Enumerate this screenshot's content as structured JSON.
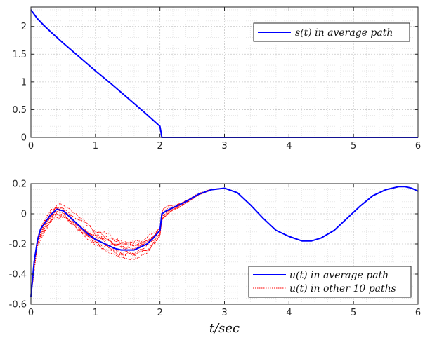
{
  "chart_data": [
    {
      "type": "line",
      "xlim": [
        0,
        6
      ],
      "ylim": [
        0,
        2.35
      ],
      "xticks": [
        "0",
        "1",
        "2",
        "3",
        "4",
        "5",
        "6"
      ],
      "yticks": [
        "0",
        "0.5",
        "1",
        "1.5",
        "2"
      ],
      "grid": true,
      "legend_position": "top-right",
      "series": [
        {
          "name": "s(t) in average path",
          "color": "#0000ff",
          "x": [
            0,
            0.05,
            0.1,
            0.2,
            0.3,
            0.5,
            0.75,
            1.0,
            1.25,
            1.5,
            1.75,
            2.0,
            2.03,
            2.5,
            3,
            3.5,
            4,
            4.5,
            5,
            5.5,
            6
          ],
          "y": [
            2.3,
            2.22,
            2.14,
            2.02,
            1.91,
            1.7,
            1.45,
            1.2,
            0.96,
            0.71,
            0.46,
            0.2,
            0.0,
            0.0,
            0.0,
            0.0,
            0.0,
            0.0,
            0.0,
            0.0,
            0.0
          ]
        }
      ]
    },
    {
      "type": "line",
      "xlim": [
        0,
        6
      ],
      "ylim": [
        -0.6,
        0.2
      ],
      "xticks": [
        "0",
        "1",
        "2",
        "3",
        "4",
        "5",
        "6"
      ],
      "yticks": [
        "-0.6",
        "-0.4",
        "-0.2",
        "0",
        "0.2"
      ],
      "grid": true,
      "xlabel": "t/sec",
      "legend_position": "bottom-right",
      "series": [
        {
          "name": "u(t) in average path",
          "color": "#0000ff",
          "x": [
            0,
            0.05,
            0.1,
            0.15,
            0.2,
            0.25,
            0.3,
            0.4,
            0.5,
            0.6,
            0.7,
            0.8,
            0.9,
            1.0,
            1.1,
            1.2,
            1.3,
            1.4,
            1.5,
            1.6,
            1.7,
            1.8,
            1.9,
            2.0,
            2.03,
            2.1,
            2.2,
            2.4,
            2.6,
            2.8,
            3.0,
            3.2,
            3.4,
            3.6,
            3.8,
            4.0,
            4.2,
            4.35,
            4.5,
            4.7,
            4.9,
            5.1,
            5.3,
            5.5,
            5.7,
            5.8,
            5.9,
            6.0
          ],
          "y": [
            -0.55,
            -0.32,
            -0.18,
            -0.1,
            -0.07,
            -0.04,
            -0.01,
            0.03,
            0.02,
            -0.02,
            -0.06,
            -0.1,
            -0.14,
            -0.17,
            -0.19,
            -0.21,
            -0.23,
            -0.24,
            -0.24,
            -0.24,
            -0.22,
            -0.2,
            -0.16,
            -0.11,
            0.0,
            0.02,
            0.04,
            0.08,
            0.13,
            0.16,
            0.17,
            0.14,
            0.06,
            -0.03,
            -0.11,
            -0.15,
            -0.18,
            -0.18,
            -0.16,
            -0.11,
            -0.03,
            0.05,
            0.12,
            0.16,
            0.18,
            0.18,
            0.17,
            0.15
          ]
        },
        {
          "name": "u(t) in other 10 paths",
          "color": "#ff0000",
          "x": [
            0,
            0.1,
            0.2,
            0.3,
            0.4,
            0.5,
            0.6,
            0.7,
            0.8,
            0.9,
            1.0,
            1.1,
            1.2,
            1.3,
            1.4,
            1.5,
            1.6,
            1.7,
            1.8,
            1.9,
            2.0,
            2.03,
            2.1,
            2.2,
            2.4,
            2.6,
            2.8,
            3.0
          ],
          "y": [
            -0.55,
            -0.18,
            -0.07,
            -0.01,
            0.03,
            0.02,
            -0.02,
            -0.06,
            -0.1,
            -0.14,
            -0.17,
            -0.19,
            -0.21,
            -0.23,
            -0.24,
            -0.24,
            -0.24,
            -0.22,
            -0.2,
            -0.16,
            -0.11,
            0.0,
            0.02,
            0.04,
            0.08,
            0.13,
            0.16,
            0.17
          ],
          "spread": [
            0,
            0.03,
            0.05,
            0.05,
            0.06,
            0.06,
            0.07,
            0.07,
            0.07,
            0.07,
            0.06,
            0.07,
            0.07,
            0.07,
            0.07,
            0.06,
            0.06,
            0.05,
            0.05,
            0.04,
            0.03,
            0.03,
            0.03,
            0.02,
            0.01,
            0.01,
            0.005,
            0.0
          ],
          "paths": 10
        }
      ]
    }
  ]
}
